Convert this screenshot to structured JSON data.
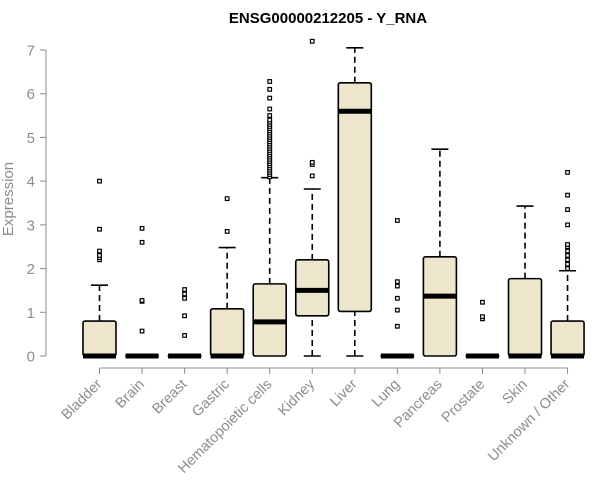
{
  "chart_data": {
    "type": "box",
    "title": "ENSG00000212205 - Y_RNA",
    "xlabel": "",
    "ylabel": "Expression",
    "ylim": [
      0,
      7
    ],
    "yticks": [
      0,
      1,
      2,
      3,
      4,
      5,
      6,
      7
    ],
    "box_fill": "#ede6cc",
    "outline_color": "#000000",
    "axis_color": "#8c8c8c",
    "categories": [
      "Bladder",
      "Brain",
      "Breast",
      "Gastric",
      "Hematopoietic cells",
      "Kidney",
      "Liver",
      "Lung",
      "Pancreas",
      "Prostate",
      "Skin",
      "Unknown / Other"
    ],
    "boxes": [
      {
        "name": "Bladder",
        "min": 0,
        "q1": 0,
        "median": 0,
        "q3": 0.8,
        "max": 1.62,
        "outliers": [
          2.2,
          2.25,
          2.3,
          2.4,
          2.9,
          4.0
        ]
      },
      {
        "name": "Brain",
        "min": 0,
        "q1": 0,
        "median": 0,
        "q3": 0,
        "max": 0,
        "outliers": [
          0.57,
          1.25,
          1.27,
          2.6,
          2.92
        ]
      },
      {
        "name": "Breast",
        "min": 0,
        "q1": 0,
        "median": 0,
        "q3": 0,
        "max": 0,
        "outliers": [
          0.47,
          0.92,
          1.32,
          1.42,
          1.52
        ]
      },
      {
        "name": "Gastric",
        "min": 0,
        "q1": 0,
        "median": 0,
        "q3": 1.08,
        "max": 2.48,
        "outliers": [
          2.85,
          3.6
        ]
      },
      {
        "name": "Hematopoietic cells",
        "min": 0,
        "q1": 0,
        "median": 0.78,
        "q3": 1.65,
        "max": 4.08,
        "outliers": [
          4.1,
          4.15,
          4.2,
          4.25,
          4.3,
          4.35,
          4.4,
          4.45,
          4.5,
          4.55,
          4.6,
          4.65,
          4.7,
          4.75,
          4.8,
          4.85,
          4.9,
          4.95,
          5.0,
          5.05,
          5.1,
          5.15,
          5.2,
          5.25,
          5.3,
          5.35,
          5.4,
          5.5,
          5.65,
          5.9,
          6.1,
          6.28
        ]
      },
      {
        "name": "Kidney",
        "min": 0,
        "q1": 0.92,
        "median": 1.5,
        "q3": 2.2,
        "max": 3.82,
        "outliers": [
          4.12,
          4.38,
          4.43,
          7.2
        ]
      },
      {
        "name": "Liver",
        "min": 0,
        "q1": 1.02,
        "median": 5.6,
        "q3": 6.25,
        "max": 7.05,
        "outliers": []
      },
      {
        "name": "Lung",
        "min": 0,
        "q1": 0,
        "median": 0,
        "q3": 0,
        "max": 0,
        "outliers": [
          0.68,
          1.05,
          1.32,
          1.6,
          1.7,
          3.1
        ]
      },
      {
        "name": "Pancreas",
        "min": 0,
        "q1": 0,
        "median": 1.37,
        "q3": 2.27,
        "max": 4.73,
        "outliers": []
      },
      {
        "name": "Prostate",
        "min": 0,
        "q1": 0,
        "median": 0,
        "q3": 0,
        "max": 0,
        "outliers": [
          0.85,
          0.9,
          1.23
        ]
      },
      {
        "name": "Skin",
        "min": 0,
        "q1": 0,
        "median": 0,
        "q3": 1.77,
        "max": 3.43,
        "outliers": []
      },
      {
        "name": "Unknown / Other",
        "min": 0,
        "q1": 0,
        "median": 0,
        "q3": 0.8,
        "max": 1.95,
        "outliers": [
          2.0,
          2.1,
          2.2,
          2.3,
          2.4,
          2.5,
          2.55,
          3.0,
          3.35,
          3.68,
          4.2
        ]
      }
    ]
  }
}
